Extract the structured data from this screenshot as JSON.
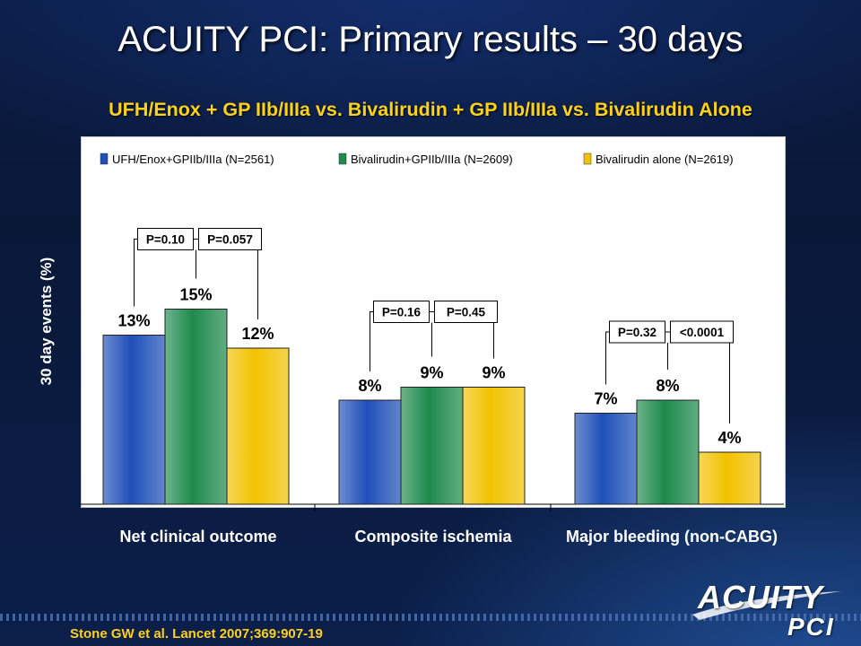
{
  "slide": {
    "title": "ACUITY PCI:  Primary results – 30 days",
    "subtitle": "UFH/Enox + GP IIb/IIIa vs. Bivalirudin + GP IIb/IIIa vs. Bivalirudin Alone",
    "citation": "Stone GW et al. Lancet 2007;369:907-19",
    "logo_line1": "ACUITY",
    "logo_line2": "PCI"
  },
  "chart_data": {
    "type": "bar",
    "ylabel": "30 day events (%)",
    "xlabel": "",
    "ylim": [
      0,
      18
    ],
    "grid": false,
    "legend_position": "top",
    "categories": [
      "Net clinical outcome",
      "Composite ischemia",
      "Major bleeding (non-CABG)"
    ],
    "series": [
      {
        "name": "UFH/Enox+GPIIb/IIIa (N=2561)",
        "color": "#1f4fb8",
        "values": [
          13,
          8,
          7
        ],
        "labels": [
          "13%",
          "8%",
          "7%"
        ]
      },
      {
        "name": "Bivalirudin+GPIIb/IIIa (N=2609)",
        "color": "#1e8a4c",
        "values": [
          15,
          9,
          8
        ],
        "labels": [
          "15%",
          "9%",
          "8%"
        ]
      },
      {
        "name": "Bivalirudin alone (N=2619)",
        "color": "#f2c200",
        "values": [
          12,
          9,
          4
        ],
        "labels": [
          "12%",
          "9%",
          "4%"
        ]
      }
    ],
    "pvalues": [
      [
        "P=0.10",
        "P=0.057"
      ],
      [
        "P=0.16",
        "P=0.45"
      ],
      [
        "P=0.32",
        "<0.0001"
      ]
    ]
  }
}
